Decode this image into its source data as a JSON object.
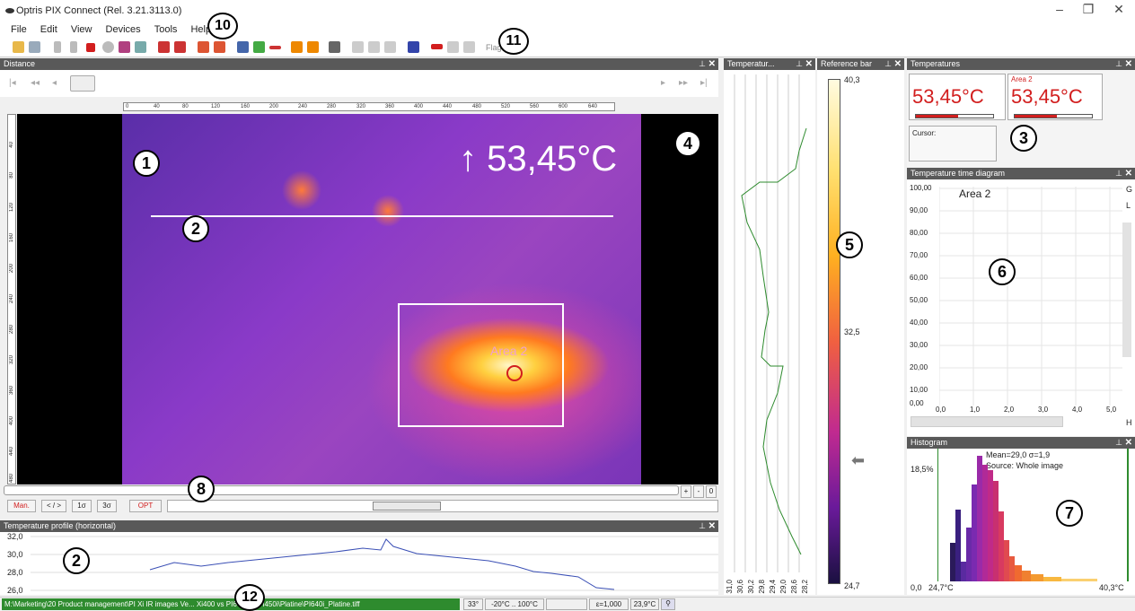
{
  "window": {
    "title": "Optris PIX Connect (Rel. 3.21.3113.0)",
    "minimize": "–",
    "restore": "❐",
    "close": "✕"
  },
  "menu": [
    "File",
    "Edit",
    "View",
    "Devices",
    "Tools",
    "Help"
  ],
  "toolbar": {
    "flag_label": "Flag"
  },
  "callouts": [
    "1",
    "2",
    "3",
    "4",
    "5",
    "6",
    "7",
    "8",
    "2",
    "10",
    "11",
    "12"
  ],
  "panels": {
    "distance": "Distance",
    "temperature_short": "Temperatur...",
    "reference_bar": "Reference bar",
    "temperatures": "Temperatures",
    "time_diagram": "Temperature time diagram",
    "histogram": "Histogram",
    "profile": "Temperature profile (horizontal)"
  },
  "main": {
    "max_readout": "↑ 53,45°C",
    "area_label": "Area 2",
    "ruler_h": [
      "0",
      "40",
      "80",
      "120",
      "160",
      "200",
      "240",
      "280",
      "320",
      "360",
      "400",
      "440",
      "480",
      "520",
      "560",
      "600",
      "640"
    ],
    "ruler_v": [
      "40",
      "80",
      "120",
      "160",
      "200",
      "240",
      "280",
      "320",
      "360",
      "400",
      "440",
      "480"
    ]
  },
  "controls": {
    "man": "Man.",
    "range": "< / >",
    "sigma1": "1σ",
    "sigma3": "3σ",
    "opt": "OPT",
    "plus": "+",
    "minus": "-",
    "zero": "0"
  },
  "temperatures": {
    "cell1_value": "53,45°C",
    "cell2_title": "Area 2",
    "cell2_value": "53,45°C",
    "cursor_label": "Cursor:"
  },
  "reference_bar": {
    "max": "40,3",
    "mid": "32,5",
    "min": "24,7"
  },
  "vertical_profile_ticks": [
    "31,0",
    "30,6",
    "30,2",
    "29,8",
    "29,4",
    "29,0",
    "28,6",
    "28,2"
  ],
  "time_diagram": {
    "series_label": "Area 2",
    "y_ticks": [
      "100,00",
      "90,00",
      "80,00",
      "70,00",
      "60,00",
      "50,00",
      "40,00",
      "30,00",
      "20,00",
      "10,00",
      "0,00"
    ],
    "x_ticks": [
      "0,0",
      "1,0",
      "2,0",
      "3,0",
      "4,0",
      "5,0"
    ],
    "side_g": "G",
    "side_l": "L",
    "side_h": "H"
  },
  "histogram": {
    "stats": "Mean=29,0 σ=1,9",
    "source": "Source:  Whole image",
    "y_max": "18,5%",
    "y_min": "0,0",
    "x_min": "24,7°C",
    "x_max": "40,3°C"
  },
  "profile": {
    "y_ticks": [
      "32,0",
      "30,0",
      "28,0",
      "26,0"
    ]
  },
  "status": {
    "path": "M:\\Marketing\\20 Product management\\PI Xi IR images Ve... Xi400 vs PI640i vs PI450i\\Platine\\PI640i_Platine.tiff",
    "fov": "33°",
    "range": "-20°C .. 100°C",
    "emissivity": "ε=1,000",
    "ambient": "23,9°C"
  },
  "colors": {
    "accent_red": "#d21e1e",
    "panel_header": "#595959",
    "status_green": "#2e8b2e"
  }
}
